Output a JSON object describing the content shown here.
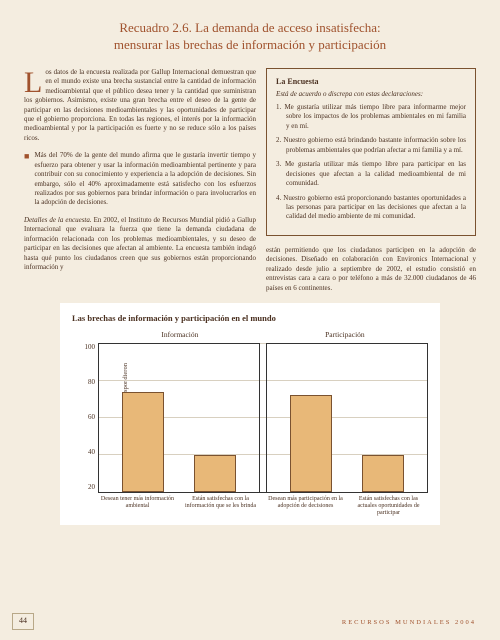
{
  "title_line1": "Recuadro 2.6. La demanda de acceso insatisfecha:",
  "title_line2": "mensurar las brechas de información y participación",
  "intro": "os datos de la encuesta realizada por Gallup Internacional demuestran que en el mundo existe una brecha sustancial entre la cantidad de información medioambiental que el público desea tener y la cantidad que suministran los gobiernos. Asimismo, existe una gran brecha entre el deseo de la gente de participar en las decisiones medioambientales y las oportunidades de participar que el gobierno proporciona. En todas las regiones, el interés por la información medioambiental y por la participación es fuerte y no se reduce sólo a los países ricos.",
  "bullet": "Más del 70% de la gente del mundo afirma que le gustaría invertir tiempo y esfuerzo para obtener y usar la información medioambiental pertinente y para contribuir con su conocimiento y experiencia a la adopción de decisiones. Sin embargo, sólo el 40% aproximadamente está satisfecho con los esfuerzos realizados por sus gobiernos para brindar información o para involucrarlos en la adopción de decisiones.",
  "details_lead": "Detalles de la encuesta.",
  "details": " En 2002, el Instituto de Recursos Mundial pidió a Gallup Internacional que evaluara la fuerza que tiene la demanda ciudadana de información relacionada con los problemas medioambientales, y su deseo de participar en las decisiones que afectan al ambiente. La encuesta también indagó hasta qué punto los ciudadanos creen que sus gobiernos están proporcionando información y",
  "survey": {
    "title": "La Encuesta",
    "subtitle": "Está de acuerdo o discrepa con estas declaraciones:",
    "items": [
      "1. Me gustaría utilizar más tiempo libre para informarme mejor sobre los impactos de los problemas ambientales en mi familia y en mí.",
      "2. Nuestro gobierno está brindando bastante información sobre los problemas ambientales que podrían afectar a mi familia y a mí.",
      "3. Me gustaría utilizar más tiempo libre para participar en las decisiones que afectan a la calidad medioambiental de mi comunidad.",
      "4. Nuestro gobierno está proporcionando bastantes oportunidades a las personas para participar en las decisiones que afectan a la calidad del medio ambiente de mi comunidad."
    ]
  },
  "lower_right": "están permitiendo que los ciudadanos participen en la adopción de decisiones. Diseñado en colaboración con Environics Internacional y realizado desde julio a septiembre de 2002, el estudio consistió en entrevistas cara a cara o por teléfono a más de 32.000 ciudadanos de 46 países en 6 continentes.",
  "chart": {
    "type": "bar",
    "title": "Las brechas de información y participación en el mundo",
    "header_left": "Información",
    "header_right": "Participación",
    "y_label": "Porcentajes de personas que respondieron",
    "y_ticks": [
      "100",
      "80",
      "60",
      "40",
      "20"
    ],
    "ylim": [
      20,
      100
    ],
    "bar_color": "#e8b878",
    "bar_border": "#7a5230",
    "background_color": "#ffffff",
    "grid_color": "#d8d0c0",
    "bars_left": [
      {
        "value": 74,
        "label": "Desean tener más información ambiental"
      },
      {
        "value": 40,
        "label": "Están satisfechas con la información que se les brinda"
      }
    ],
    "bars_right": [
      {
        "value": 72,
        "label": "Desean más participación en la adopción de decisiones"
      },
      {
        "value": 40,
        "label": "Están satisfechas con las actuales oportunidades de participar"
      }
    ]
  },
  "page_number": "44",
  "footer": "RECURSOS MUNDIALES 2004"
}
